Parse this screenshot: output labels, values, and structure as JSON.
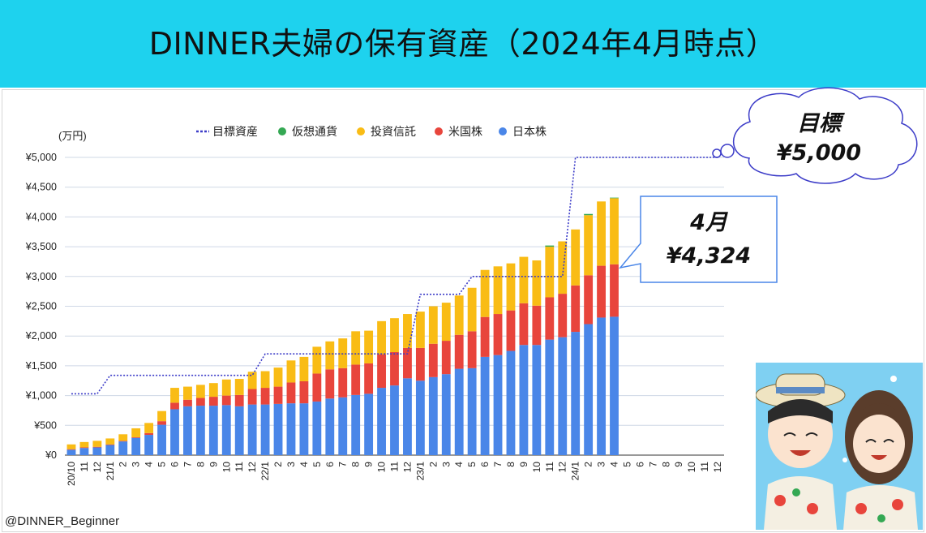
{
  "title": "DINNER夫婦の保有資産（2024年4月時点）",
  "credit": "@DINNER_Beginner",
  "callout_goal": {
    "line1": "目標",
    "line2": "¥5,000"
  },
  "callout_current": {
    "line1": "4月",
    "line2": "¥4,324"
  },
  "colors": {
    "header_bg": "#1ed2ee",
    "jp_stock": "#4a86e8",
    "us_stock": "#e8453c",
    "fund": "#f9bc15",
    "crypto": "#34a853",
    "target": "#3c3cc8",
    "callout_border": "#4a86e8"
  },
  "chart_data": {
    "type": "bar",
    "stacked": true,
    "unit_label": "(万円)",
    "ylim": [
      0,
      5000
    ],
    "yticks": [
      "¥0",
      "¥500",
      "¥1,000",
      "¥1,500",
      "¥2,000",
      "¥2,500",
      "¥3,000",
      "¥3,500",
      "¥4,000",
      "¥4,500",
      "¥5,000"
    ],
    "grid": true,
    "legend_position": "top",
    "legend": [
      "目標資産",
      "仮想通貨",
      "投資信託",
      "米国株",
      "日本株"
    ],
    "categories": [
      "20/10",
      "11",
      "12",
      "21/1",
      "2",
      "3",
      "4",
      "5",
      "6",
      "7",
      "8",
      "9",
      "10",
      "11",
      "12",
      "22/1",
      "2",
      "3",
      "4",
      "5",
      "6",
      "7",
      "8",
      "9",
      "10",
      "11",
      "12",
      "23/1",
      "2",
      "3",
      "4",
      "5",
      "6",
      "7",
      "8",
      "9",
      "10",
      "11",
      "12",
      "24/1",
      "2",
      "3",
      "4",
      "5",
      "6",
      "7",
      "8",
      "9",
      "10",
      "11",
      "12"
    ],
    "series": [
      {
        "name": "日本株",
        "values": [
          90,
          120,
          130,
          170,
          230,
          290,
          340,
          510,
          770,
          820,
          830,
          830,
          840,
          820,
          850,
          850,
          860,
          870,
          870,
          900,
          950,
          970,
          1010,
          1030,
          1130,
          1170,
          1290,
          1250,
          1310,
          1360,
          1450,
          1460,
          1650,
          1680,
          1750,
          1850,
          1850,
          1940,
          1980,
          2070,
          2200,
          2310,
          2324,
          null,
          null,
          null,
          null,
          null,
          null,
          null,
          null
        ]
      },
      {
        "name": "米国株",
        "values": [
          10,
          10,
          10,
          10,
          10,
          10,
          30,
          60,
          110,
          110,
          130,
          150,
          160,
          190,
          260,
          280,
          290,
          350,
          370,
          470,
          490,
          490,
          510,
          510,
          560,
          560,
          510,
          550,
          560,
          560,
          570,
          620,
          670,
          690,
          680,
          700,
          660,
          710,
          730,
          780,
          820,
          870,
          880,
          null,
          null,
          null,
          null,
          null,
          null,
          null,
          null
        ]
      },
      {
        "name": "投資信託",
        "values": [
          80,
          90,
          100,
          100,
          110,
          150,
          170,
          170,
          250,
          220,
          220,
          230,
          270,
          270,
          290,
          280,
          320,
          370,
          410,
          450,
          470,
          500,
          560,
          550,
          560,
          570,
          570,
          610,
          630,
          640,
          660,
          730,
          790,
          800,
          790,
          780,
          760,
          850,
          880,
          940,
          1010,
          1080,
          1110,
          null,
          null,
          null,
          null,
          null,
          null,
          null,
          null
        ]
      },
      {
        "name": "仮想通貨",
        "values": [
          0,
          0,
          0,
          0,
          0,
          0,
          0,
          0,
          0,
          0,
          0,
          0,
          0,
          0,
          0,
          0,
          0,
          0,
          0,
          0,
          0,
          0,
          0,
          0,
          0,
          0,
          0,
          0,
          0,
          0,
          0,
          0,
          0,
          0,
          0,
          0,
          0,
          20,
          0,
          0,
          20,
          0,
          10,
          null,
          null,
          null,
          null,
          null,
          null,
          null,
          null
        ]
      },
      {
        "name": "目標資産",
        "type": "line",
        "style": "dotted",
        "values": [
          1030,
          1030,
          1030,
          1340,
          1340,
          1340,
          1340,
          1340,
          1340,
          1340,
          1340,
          1340,
          1340,
          1340,
          1340,
          1700,
          1700,
          1700,
          1700,
          1700,
          1700,
          1700,
          1700,
          1700,
          1700,
          1700,
          1700,
          2700,
          2700,
          2700,
          2700,
          3000,
          3000,
          3000,
          3000,
          3000,
          3000,
          3000,
          3000,
          5000,
          5000,
          5000,
          5000,
          5000,
          5000,
          5000,
          5000,
          5000,
          5000,
          5000,
          5000
        ]
      }
    ]
  }
}
